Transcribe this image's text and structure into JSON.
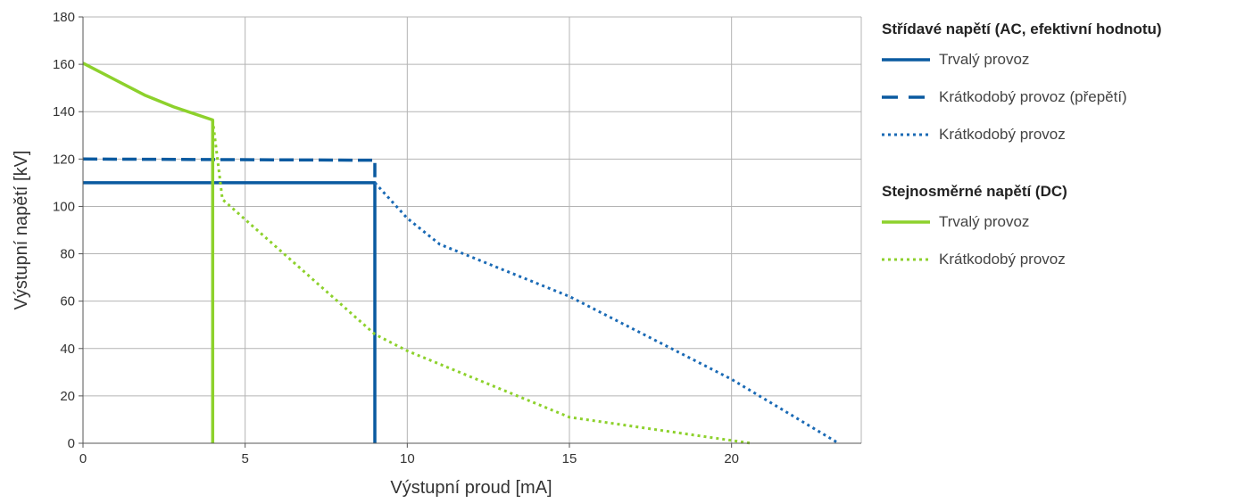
{
  "chart_data": {
    "type": "line",
    "xlabel": "Výstupní proud [mA]",
    "ylabel": "Výstupní napětí [kV]",
    "xlim": [
      0,
      24
    ],
    "ylim": [
      0,
      180
    ],
    "xticks": [
      0,
      5,
      10,
      15,
      20
    ],
    "yticks": [
      0,
      20,
      40,
      60,
      80,
      100,
      120,
      140,
      160,
      180
    ],
    "grid": true,
    "legend_placement": "right",
    "legend_groups": [
      {
        "title": "Střídavé napětí (AC, efektivní hodnotu)",
        "series_indices": [
          0,
          1,
          2
        ]
      },
      {
        "title": "Stejnosměrné napětí (DC)",
        "series_indices": [
          3,
          4
        ]
      }
    ],
    "series": [
      {
        "name": "Trvalý provoz",
        "color": "#0a5aa0",
        "style": "solid",
        "x": [
          0,
          9,
          9
        ],
        "y": [
          110,
          110,
          0
        ]
      },
      {
        "name": "Krátkodobý provoz (přepětí)",
        "color": "#0a5aa0",
        "style": "dashed",
        "x": [
          0,
          9,
          9
        ],
        "y": [
          120,
          119.5,
          110
        ]
      },
      {
        "name": "Krátkodobý provoz",
        "color": "#1a6ab5",
        "style": "dotted",
        "x": [
          9,
          10,
          11,
          15,
          20,
          23.3
        ],
        "y": [
          110,
          95,
          84,
          62,
          27,
          0
        ]
      },
      {
        "name": "Trvalý provoz",
        "color": "#8dd12c",
        "style": "solid",
        "x": [
          0,
          1.9,
          2.8,
          4,
          4
        ],
        "y": [
          160.5,
          147,
          142,
          136.5,
          0
        ]
      },
      {
        "name": "Krátkodobý provoz",
        "color": "#8dd12c",
        "style": "dotted",
        "x": [
          4,
          4.3,
          9,
          10,
          15,
          20.6
        ],
        "y": [
          136.5,
          103,
          46,
          39,
          11,
          0
        ]
      }
    ]
  }
}
